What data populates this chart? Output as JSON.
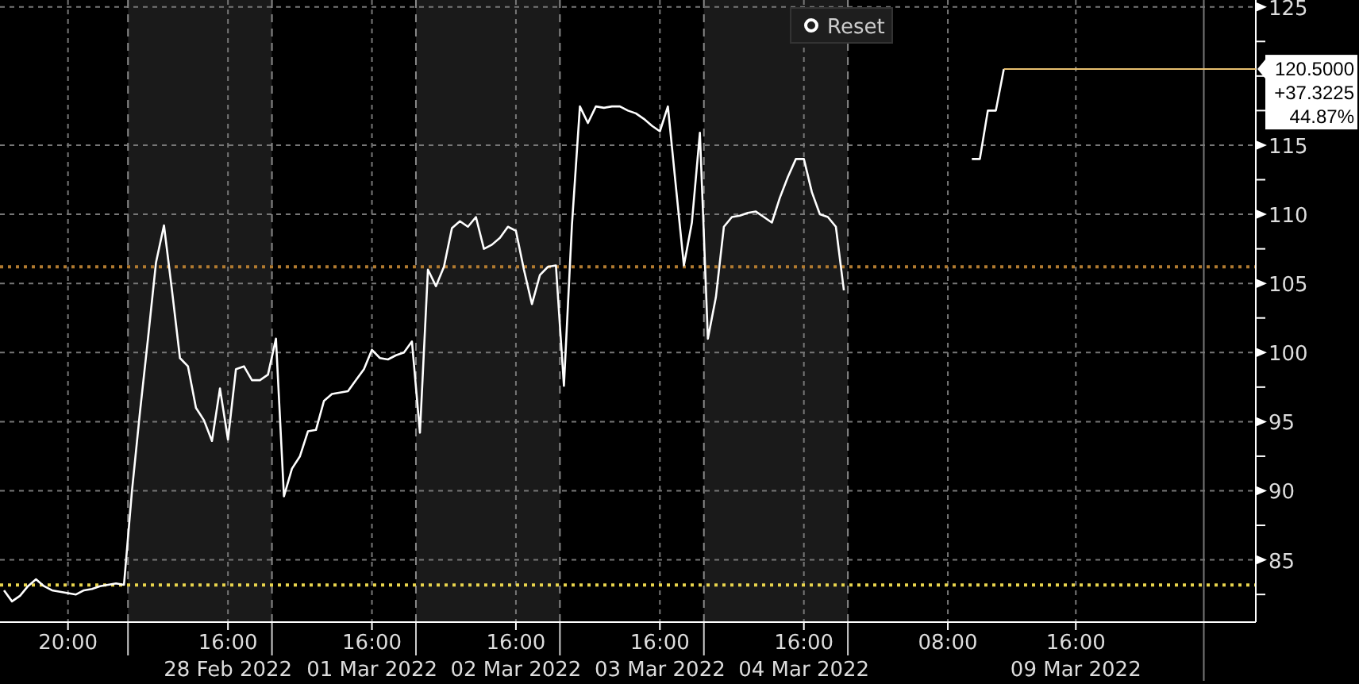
{
  "chart_data": {
    "type": "line",
    "categories": [
      null,
      null,
      null,
      null,
      null,
      null,
      null,
      null,
      "20:00",
      null,
      null,
      null,
      null,
      null,
      null,
      null,
      null,
      null,
      null,
      null,
      null,
      null,
      null,
      null,
      null,
      null,
      null,
      null,
      "16:00\n28 Feb 2022",
      null,
      null,
      null,
      null,
      null,
      null,
      null,
      null,
      null,
      null,
      null,
      null,
      null,
      null,
      null,
      null,
      null,
      "16:00\n01 Mar 2022",
      null,
      null,
      null,
      null,
      null,
      null,
      null,
      null,
      null,
      null,
      null,
      null,
      null,
      null,
      null,
      null,
      null,
      "16:00\n02 Mar 2022",
      null,
      null,
      null,
      null,
      null,
      null,
      null,
      null,
      null,
      null,
      null,
      null,
      null,
      null,
      null,
      null,
      null,
      "16:00\n03 Mar 2022",
      null,
      null,
      null,
      null,
      null,
      null,
      null,
      null,
      null,
      null,
      null,
      null,
      null,
      null,
      null,
      null,
      null,
      "16:00\n04 Mar 2022",
      null,
      null,
      null,
      null,
      null,
      null,
      null,
      null,
      null,
      null,
      null,
      null,
      null,
      null,
      null,
      null,
      null,
      "08:00",
      null,
      null,
      null,
      null,
      null,
      null,
      null,
      null,
      null,
      null,
      null,
      null,
      null,
      null,
      null,
      "16:00\n09 Mar 2022",
      null,
      null,
      null,
      null,
      null,
      null,
      null,
      null,
      null,
      null,
      null,
      null,
      null,
      null,
      null,
      null,
      null,
      null,
      null,
      null,
      null,
      null
    ],
    "series": [
      {
        "color": "#ffffff",
        "values": [
          82.8,
          82.0,
          82.4,
          83.1,
          83.6,
          83.1,
          82.8,
          82.7,
          82.6,
          82.5,
          82.8,
          82.9,
          83.1,
          83.2,
          83.3,
          83.2,
          90.0,
          95.7,
          101.0,
          106.5,
          109.2,
          104.5,
          99.6,
          99.0,
          96.0,
          95.1,
          93.6,
          97.4,
          93.7,
          98.8,
          99.0,
          98.0,
          98.0,
          98.4,
          101.0,
          89.6,
          91.6,
          92.5,
          94.3,
          94.4,
          96.5,
          97.0,
          97.1,
          97.2,
          98.0,
          98.8,
          100.2,
          99.6,
          99.5,
          99.8,
          100.0,
          100.8,
          94.2,
          106.0,
          104.8,
          106.2,
          109.0,
          109.5,
          109.1,
          109.8,
          107.5,
          107.8,
          108.3,
          109.1,
          108.8,
          106.0,
          103.5,
          105.6,
          106.2,
          106.3,
          97.6,
          109.2,
          117.8,
          116.6,
          117.8,
          117.7,
          117.8,
          117.8,
          117.5,
          117.3,
          116.9,
          116.4,
          116.0,
          117.8,
          112.0,
          106.3,
          109.4,
          115.9,
          101.0,
          104.0,
          109.1,
          109.8,
          109.9,
          110.1,
          110.2,
          109.8,
          109.4,
          111.2,
          112.7,
          114.0,
          114.0,
          111.6,
          110.0,
          109.8,
          109.1,
          104.5,
          null,
          null,
          null,
          null,
          null,
          null,
          null,
          null,
          null,
          null,
          null,
          null,
          null,
          null,
          null,
          114.0,
          114.0,
          117.5,
          117.5,
          120.5,
          null,
          null,
          null,
          null,
          null,
          null,
          null,
          null,
          null,
          null,
          null,
          null,
          null,
          null,
          null,
          null,
          null,
          null,
          null,
          null,
          null,
          null,
          null,
          null,
          null,
          null,
          null,
          null,
          null,
          null,
          null
        ]
      }
    ],
    "ylim": [
      80.5,
      125.5
    ],
    "yticks": [
      {
        "value": 82.5,
        "label": null
      },
      85,
      {
        "value": 87.5,
        "label": null
      },
      90,
      {
        "value": 92.5,
        "label": null
      },
      95,
      {
        "value": 97.5,
        "label": null
      },
      100,
      {
        "value": 102.5,
        "label": null
      },
      105,
      {
        "value": 107.5,
        "label": null
      },
      110,
      {
        "value": 112.5,
        "label": null
      },
      115,
      {
        "value": 117.5,
        "label": null
      },
      {
        "value": 120,
        "label": null
      },
      {
        "value": 122.5,
        "label": null
      },
      125
    ],
    "grid": true,
    "ref_lines": [
      {
        "axis": "y",
        "value": 83.1775,
        "color": "#e8d44d",
        "line_style": "dotted"
      },
      {
        "axis": "y",
        "value": 106.2,
        "color": "#b07a30",
        "line_style": "dotted"
      }
    ],
    "annotations": [
      "Reset",
      "120.5000\n+37.3225\n44.87%"
    ]
  }
}
